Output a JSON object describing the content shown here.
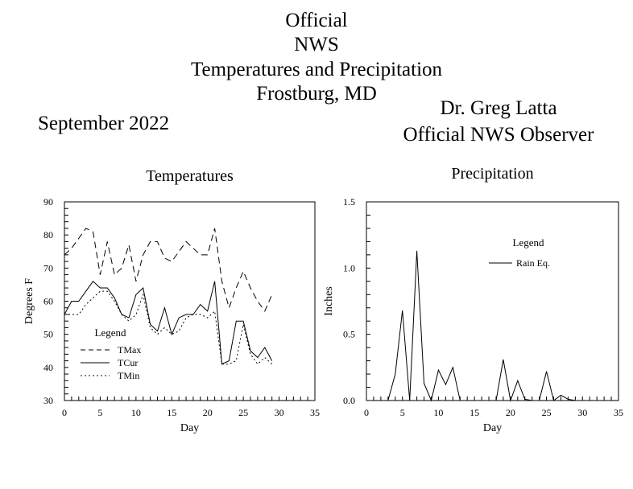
{
  "header": {
    "title_lines": [
      "Official",
      "NWS",
      "Temperatures and Precipitation",
      "Frostburg, MD"
    ],
    "month": "September 2022",
    "observer_name": "Dr. Greg Latta",
    "observer_title": "Official NWS Observer"
  },
  "chart_data": [
    {
      "type": "line",
      "title": "Temperatures",
      "xlabel": "Day",
      "ylabel": "Degrees F",
      "xlim": [
        0,
        35
      ],
      "ylim": [
        30,
        90
      ],
      "x_ticks": [
        0,
        5,
        10,
        15,
        20,
        25,
        30,
        35
      ],
      "y_ticks": [
        30,
        40,
        50,
        60,
        70,
        80,
        90
      ],
      "legend": {
        "title": "Legend",
        "position": "bottom-left"
      },
      "x": [
        0,
        1,
        2,
        3,
        4,
        5,
        6,
        7,
        8,
        9,
        10,
        11,
        12,
        13,
        14,
        15,
        16,
        17,
        18,
        19,
        20,
        21,
        22,
        23,
        24,
        25,
        26,
        27,
        28,
        29
      ],
      "series": [
        {
          "name": "TMax",
          "style": "dashed",
          "values": [
            74,
            76,
            79,
            82,
            81,
            68,
            78,
            68,
            70,
            77,
            66,
            74,
            78,
            78,
            73,
            72,
            75,
            78,
            76,
            74,
            74,
            82,
            66,
            58,
            64,
            69,
            64,
            60,
            57,
            62
          ]
        },
        {
          "name": "TCur",
          "style": "solid",
          "values": [
            56,
            60,
            60,
            63,
            66,
            64,
            64,
            61,
            56,
            55,
            62,
            64,
            53,
            51,
            58,
            50,
            55,
            56,
            56,
            59,
            57,
            66,
            41,
            42,
            54,
            54,
            45,
            43,
            46,
            42
          ]
        },
        {
          "name": "TMin",
          "style": "dotted",
          "values": [
            56,
            56,
            56,
            59,
            61,
            63,
            63,
            60,
            56,
            54,
            56,
            62,
            52,
            50,
            52,
            50,
            51,
            55,
            56,
            56,
            55,
            57,
            41,
            41,
            42,
            53,
            44,
            41,
            43,
            41
          ]
        }
      ]
    },
    {
      "type": "line",
      "title": "Precipitation",
      "xlabel": "Day",
      "ylabel": "Inches",
      "xlim": [
        0,
        35
      ],
      "ylim": [
        0,
        1.5
      ],
      "x_ticks": [
        0,
        5,
        10,
        15,
        20,
        25,
        30,
        35
      ],
      "y_ticks": [
        "0.0",
        "0.5",
        "1.0",
        "1.5"
      ],
      "legend": {
        "title": "Legend",
        "position": "top-right"
      },
      "x": [
        0,
        1,
        2,
        3,
        4,
        5,
        6,
        7,
        8,
        9,
        10,
        11,
        12,
        13,
        14,
        15,
        16,
        17,
        18,
        19,
        20,
        21,
        22,
        23,
        24,
        25,
        26,
        27,
        28,
        29,
        30
      ],
      "series": [
        {
          "name": "Rain Eq.",
          "style": "solid",
          "values": [
            0,
            0,
            0,
            0,
            0.2,
            0.68,
            0,
            1.13,
            0.13,
            0,
            0.23,
            0.12,
            0.25,
            0,
            0,
            0,
            0,
            0,
            0,
            0.31,
            0,
            0.15,
            0.01,
            0,
            0,
            0.22,
            0,
            0.04,
            0.01,
            0,
            0
          ]
        }
      ]
    }
  ]
}
